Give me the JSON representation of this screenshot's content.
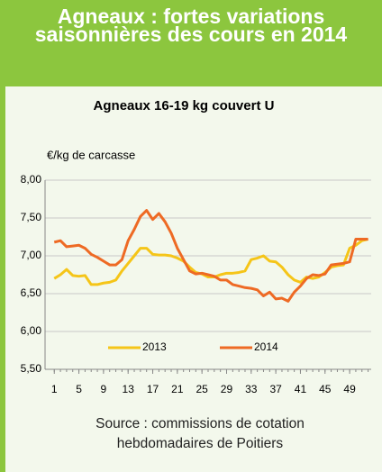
{
  "header": {
    "title": "Agneaux : fortes variations saisonnières des cours en 2014"
  },
  "chart_data": {
    "type": "line",
    "title": "Agneaux 16-19 kg couvert U",
    "y_label": "€/kg de carcasse",
    "x": [
      1,
      2,
      3,
      4,
      5,
      6,
      7,
      8,
      9,
      10,
      11,
      12,
      13,
      14,
      15,
      16,
      17,
      18,
      19,
      20,
      21,
      22,
      23,
      24,
      25,
      26,
      27,
      28,
      29,
      30,
      31,
      32,
      33,
      34,
      35,
      36,
      37,
      38,
      39,
      40,
      41,
      42,
      43,
      44,
      45,
      46,
      47,
      48,
      49,
      50,
      51,
      52
    ],
    "xlim": [
      -0.5,
      52.5
    ],
    "xticks": [
      1,
      5,
      9,
      13,
      17,
      21,
      25,
      29,
      33,
      37,
      41,
      45,
      49
    ],
    "ylim": [
      5.5,
      8
    ],
    "yticks": [
      {
        "value": 5.5,
        "label": "5,50"
      },
      {
        "value": 6,
        "label": "6,00"
      },
      {
        "value": 6.5,
        "label": "6,50"
      },
      {
        "value": 7,
        "label": "7,00"
      },
      {
        "value": 7.5,
        "label": "7,50"
      },
      {
        "value": 8,
        "label": "8,00"
      }
    ],
    "grid": true,
    "legend": "bottom",
    "series": [
      {
        "name": "2013",
        "color": "#f5c518",
        "values": [
          6.7,
          6.75,
          6.82,
          6.74,
          6.73,
          6.74,
          6.62,
          6.62,
          6.64,
          6.65,
          6.68,
          6.8,
          6.9,
          7.0,
          7.1,
          7.1,
          7.02,
          7.01,
          7.01,
          7.0,
          6.97,
          6.93,
          6.85,
          6.78,
          6.76,
          6.72,
          6.72,
          6.75,
          6.77,
          6.77,
          6.78,
          6.8,
          6.95,
          6.97,
          7.0,
          6.93,
          6.92,
          6.85,
          6.75,
          6.68,
          6.65,
          6.72,
          6.7,
          6.72,
          6.78,
          6.85,
          6.87,
          6.88,
          7.1,
          7.14,
          7.2,
          7.22
        ]
      },
      {
        "name": "2014",
        "color": "#ee6a24",
        "values": [
          7.18,
          7.2,
          7.12,
          7.13,
          7.14,
          7.1,
          7.02,
          6.98,
          6.93,
          6.88,
          6.88,
          6.95,
          7.2,
          7.35,
          7.52,
          7.6,
          7.48,
          7.56,
          7.45,
          7.3,
          7.1,
          6.95,
          6.8,
          6.76,
          6.77,
          6.75,
          6.73,
          6.68,
          6.68,
          6.62,
          6.6,
          6.58,
          6.57,
          6.55,
          6.47,
          6.52,
          6.43,
          6.44,
          6.4,
          6.52,
          6.6,
          6.7,
          6.75,
          6.74,
          6.76,
          6.88,
          6.89,
          6.9,
          6.92,
          7.22,
          7.22,
          7.22
        ]
      }
    ]
  },
  "footer": {
    "source": "Source : commissions de cotation hebdomadaires de Poitiers"
  }
}
